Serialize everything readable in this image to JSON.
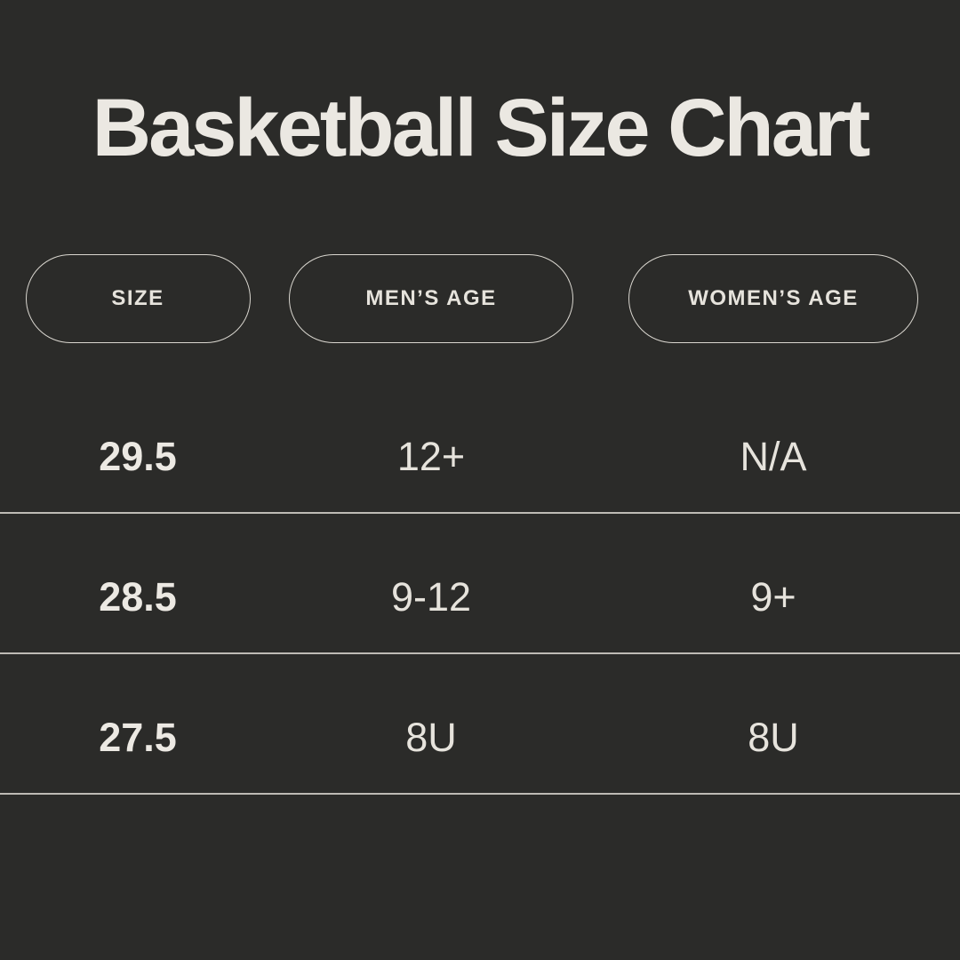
{
  "page": {
    "title": "Basketball Size Chart"
  },
  "colors": {
    "background": "#2b2b29",
    "title_text": "#ebe8e2",
    "body_text": "#e6e3dc",
    "pill_border": "#d9d6cf",
    "divider": "#d8d5ce"
  },
  "chart_data": {
    "type": "table",
    "title": "Basketball Size Chart",
    "columns": [
      "SIZE",
      "MEN’S AGE",
      "WOMEN’S AGE"
    ],
    "rows": [
      [
        "29.5",
        "12+",
        "N/A"
      ],
      [
        "28.5",
        "9-12",
        "9+"
      ],
      [
        "27.5",
        "8U",
        "8U"
      ]
    ]
  }
}
